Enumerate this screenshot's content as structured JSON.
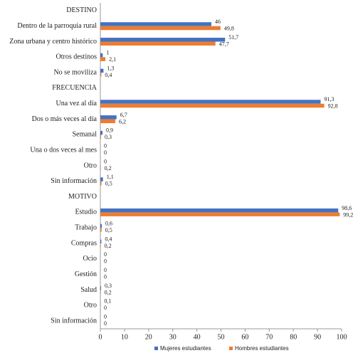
{
  "chart_data": {
    "type": "bar",
    "orientation": "horizontal",
    "categories": [
      "DESTINO",
      "Dentro de la parroquia rural",
      "Zona urbana y centro histórico",
      "Otros destinos",
      "No se moviliza",
      "FRECUENCIA",
      "Una vez al día",
      "Dos o más veces al día",
      "Semanal",
      "Una o dos veces al mes",
      "Otro",
      "Sin información",
      "MOTIVO",
      "Estudio",
      "Trabajo",
      "Compras",
      "Ocio",
      "Gestión",
      "Salud",
      "Otro",
      "Sin información"
    ],
    "series": [
      {
        "name": "Mujeres estudiantes",
        "color": "#4472c4",
        "values": [
          null,
          46,
          51.7,
          1,
          1.3,
          null,
          91.3,
          6.7,
          0.9,
          0,
          0,
          1.1,
          null,
          98.6,
          0.6,
          0.4,
          0,
          0,
          0.3,
          0.1,
          0
        ],
        "value_labels": [
          null,
          "46",
          "51,7",
          "1",
          "1,3",
          null,
          "91,3",
          "6,7",
          "0,9",
          "0",
          "0",
          "1,1",
          null,
          "98,6",
          "0,6",
          "0,4",
          "0",
          "0",
          "0,3",
          "0,1",
          "0"
        ]
      },
      {
        "name": "Hombres estudiantes",
        "color": "#ed7d31",
        "values": [
          null,
          49.8,
          47.7,
          2.1,
          0.4,
          null,
          92.8,
          6.2,
          0.3,
          0,
          0.2,
          0.5,
          null,
          99.2,
          0.5,
          0.2,
          0,
          0,
          0.2,
          0,
          0
        ],
        "value_labels": [
          null,
          "49,8",
          "47,7",
          "2,1",
          "0,4",
          null,
          "92,8",
          "6,2",
          "0,3",
          "0",
          "0,2",
          "0,5",
          null,
          "99,2",
          "0,5",
          "0,2",
          "0",
          "0",
          "0,2",
          "0",
          "0"
        ]
      }
    ],
    "xlim": [
      0,
      100
    ],
    "xticks": [
      0,
      10,
      20,
      30,
      40,
      50,
      60,
      70,
      80,
      90,
      100
    ],
    "legend": "bottom"
  }
}
